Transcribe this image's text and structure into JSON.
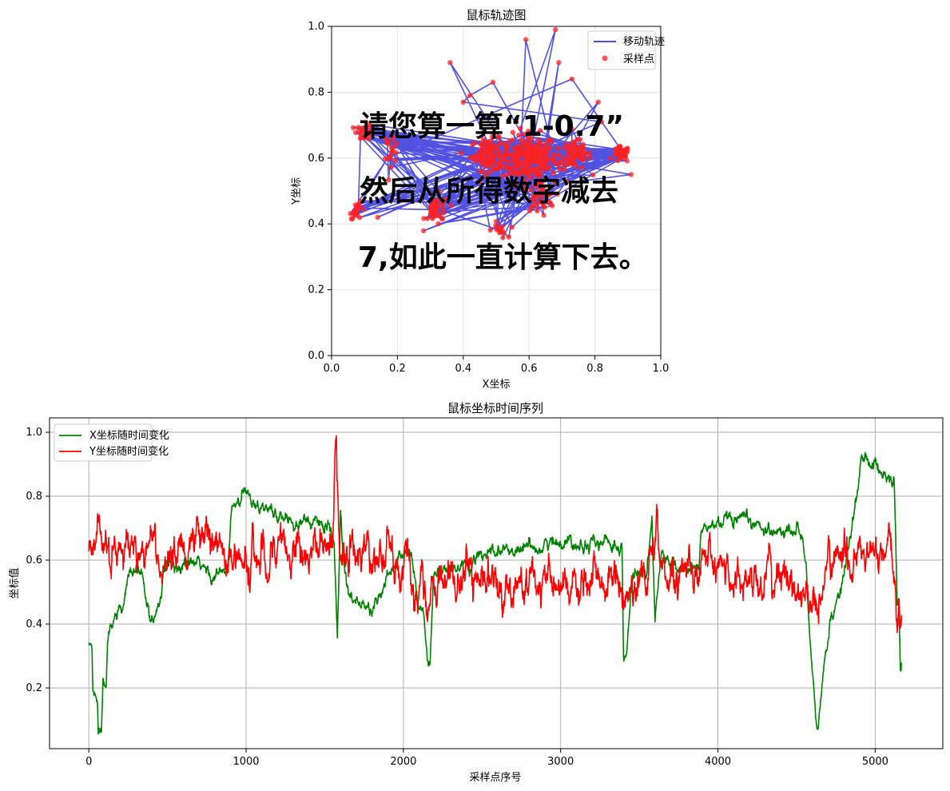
{
  "chart_data": [
    {
      "type": "scatter",
      "title": "鼠标轨迹图",
      "xlabel": "X坐标",
      "ylabel": "Y坐标",
      "xlim": [
        0,
        1
      ],
      "ylim": [
        0,
        1
      ],
      "xticks": [
        "0.0",
        "0.2",
        "0.4",
        "0.6",
        "0.8",
        "1.0"
      ],
      "yticks": [
        "0.0",
        "0.2",
        "0.4",
        "0.6",
        "0.8",
        "1.0"
      ],
      "grid": true,
      "legend": {
        "placement": "top-right",
        "entries": [
          "移动轨迹",
          "采样点"
        ]
      },
      "series": [
        {
          "name": "移动轨迹",
          "style": "line",
          "color": "#3333dd"
        },
        {
          "name": "采样点",
          "style": "marker",
          "color": "#ff2222"
        }
      ],
      "overlay_text": [
        "请您算一算“1-0.7”",
        "然后从所得数字减去",
        "7,如此一直计算下去。"
      ],
      "clusters": [
        {
          "x": 0.6,
          "y": 0.6,
          "sx": 0.07,
          "sy": 0.06,
          "n": 220
        },
        {
          "x": 0.48,
          "y": 0.61,
          "sx": 0.05,
          "sy": 0.04,
          "n": 90
        },
        {
          "x": 0.74,
          "y": 0.61,
          "sx": 0.04,
          "sy": 0.04,
          "n": 70
        },
        {
          "x": 0.88,
          "y": 0.61,
          "sx": 0.02,
          "sy": 0.02,
          "n": 40
        },
        {
          "x": 0.32,
          "y": 0.44,
          "sx": 0.03,
          "sy": 0.04,
          "n": 40
        },
        {
          "x": 0.1,
          "y": 0.68,
          "sx": 0.02,
          "sy": 0.02,
          "n": 25
        },
        {
          "x": 0.08,
          "y": 0.44,
          "sx": 0.02,
          "sy": 0.02,
          "n": 20
        },
        {
          "x": 0.18,
          "y": 0.63,
          "sx": 0.02,
          "sy": 0.04,
          "n": 20
        },
        {
          "x": 0.51,
          "y": 0.38,
          "sx": 0.02,
          "sy": 0.02,
          "n": 15
        },
        {
          "x": 0.63,
          "y": 0.48,
          "sx": 0.04,
          "sy": 0.04,
          "n": 40
        }
      ],
      "outliers": [
        [
          0.36,
          0.89
        ],
        [
          0.59,
          0.96
        ],
        [
          0.68,
          0.99
        ],
        [
          0.69,
          0.89
        ],
        [
          0.73,
          0.84
        ],
        [
          0.81,
          0.77
        ],
        [
          0.49,
          0.83
        ],
        [
          0.42,
          0.79
        ],
        [
          0.4,
          0.77
        ],
        [
          0.82,
          0.71
        ],
        [
          0.14,
          0.42
        ],
        [
          0.91,
          0.55
        ]
      ]
    },
    {
      "type": "line",
      "title": "鼠标坐标时间序列",
      "xlabel": "采样点序号",
      "ylabel": "坐标值",
      "xlim": [
        -250,
        5430
      ],
      "ylim": [
        0.01,
        1.045
      ],
      "xticks": [
        0,
        1000,
        2000,
        3000,
        4000,
        5000
      ],
      "yticks": [
        0.2,
        0.4,
        0.6,
        0.8,
        1.0
      ],
      "grid": true,
      "legend": {
        "placement": "top-left"
      },
      "n_points": 5170,
      "series": [
        {
          "name": "X坐标随时间变化",
          "color": "#008000",
          "noise": 0.012,
          "keyframes": [
            [
              0,
              0.335
            ],
            [
              20,
              0.33
            ],
            [
              25,
              0.19
            ],
            [
              40,
              0.17
            ],
            [
              55,
              0.18
            ],
            [
              60,
              0.07
            ],
            [
              80,
              0.07
            ],
            [
              90,
              0.24
            ],
            [
              110,
              0.24
            ],
            [
              120,
              0.36
            ],
            [
              150,
              0.38
            ],
            [
              170,
              0.43
            ],
            [
              200,
              0.43
            ],
            [
              225,
              0.44
            ],
            [
              250,
              0.55
            ],
            [
              300,
              0.57
            ],
            [
              340,
              0.55
            ],
            [
              370,
              0.44
            ],
            [
              390,
              0.42
            ],
            [
              420,
              0.43
            ],
            [
              450,
              0.48
            ],
            [
              480,
              0.57
            ],
            [
              600,
              0.59
            ],
            [
              700,
              0.58
            ],
            [
              800,
              0.55
            ],
            [
              880,
              0.56
            ],
            [
              910,
              0.76
            ],
            [
              960,
              0.78
            ],
            [
              1000,
              0.81
            ],
            [
              1050,
              0.79
            ],
            [
              1100,
              0.77
            ],
            [
              1200,
              0.74
            ],
            [
              1300,
              0.73
            ],
            [
              1400,
              0.72
            ],
            [
              1520,
              0.71
            ],
            [
              1540,
              0.66
            ],
            [
              1560,
              0.63
            ],
            [
              1580,
              0.37
            ],
            [
              1600,
              0.75
            ],
            [
              1620,
              0.6
            ],
            [
              1650,
              0.52
            ],
            [
              1700,
              0.47
            ],
            [
              1800,
              0.44
            ],
            [
              1880,
              0.52
            ],
            [
              1950,
              0.6
            ],
            [
              2000,
              0.63
            ],
            [
              2050,
              0.62
            ],
            [
              2090,
              0.48
            ],
            [
              2130,
              0.42
            ],
            [
              2150,
              0.3
            ],
            [
              2170,
              0.26
            ],
            [
              2190,
              0.55
            ],
            [
              2220,
              0.57
            ],
            [
              2300,
              0.56
            ],
            [
              2400,
              0.58
            ],
            [
              2500,
              0.61
            ],
            [
              2600,
              0.62
            ],
            [
              2800,
              0.64
            ],
            [
              3000,
              0.66
            ],
            [
              3100,
              0.66
            ],
            [
              3300,
              0.65
            ],
            [
              3390,
              0.65
            ],
            [
              3400,
              0.31
            ],
            [
              3420,
              0.31
            ],
            [
              3460,
              0.56
            ],
            [
              3550,
              0.56
            ],
            [
              3580,
              0.72
            ],
            [
              3600,
              0.4
            ],
            [
              3640,
              0.64
            ],
            [
              3700,
              0.58
            ],
            [
              3800,
              0.57
            ],
            [
              3880,
              0.58
            ],
            [
              3890,
              0.69
            ],
            [
              3950,
              0.7
            ],
            [
              4010,
              0.72
            ],
            [
              4100,
              0.71
            ],
            [
              4200,
              0.72
            ],
            [
              4300,
              0.7
            ],
            [
              4400,
              0.69
            ],
            [
              4450,
              0.69
            ],
            [
              4500,
              0.7
            ],
            [
              4540,
              0.66
            ],
            [
              4560,
              0.6
            ],
            [
              4580,
              0.4
            ],
            [
              4600,
              0.25
            ],
            [
              4620,
              0.1
            ],
            [
              4630,
              0.06
            ],
            [
              4660,
              0.18
            ],
            [
              4680,
              0.3
            ],
            [
              4700,
              0.35
            ],
            [
              4720,
              0.42
            ],
            [
              4750,
              0.47
            ],
            [
              4800,
              0.55
            ],
            [
              4850,
              0.68
            ],
            [
              4870,
              0.76
            ],
            [
              4910,
              0.91
            ],
            [
              4980,
              0.91
            ],
            [
              5030,
              0.88
            ],
            [
              5100,
              0.86
            ],
            [
              5120,
              0.86
            ],
            [
              5140,
              0.48
            ],
            [
              5150,
              0.5
            ],
            [
              5160,
              0.25
            ],
            [
              5170,
              0.28
            ]
          ]
        },
        {
          "name": "Y坐标随时间变化",
          "color": "#ff0000",
          "noise": 0.035,
          "keyframes": [
            [
              0,
              0.63
            ],
            [
              60,
              0.7
            ],
            [
              120,
              0.68
            ],
            [
              180,
              0.6
            ],
            [
              300,
              0.64
            ],
            [
              400,
              0.66
            ],
            [
              480,
              0.58
            ],
            [
              600,
              0.64
            ],
            [
              800,
              0.66
            ],
            [
              900,
              0.62
            ],
            [
              1000,
              0.59
            ],
            [
              1100,
              0.63
            ],
            [
              1200,
              0.64
            ],
            [
              1300,
              0.64
            ],
            [
              1500,
              0.64
            ],
            [
              1550,
              0.62
            ],
            [
              1570,
              0.95
            ],
            [
              1590,
              0.7
            ],
            [
              1620,
              0.62
            ],
            [
              1700,
              0.61
            ],
            [
              1800,
              0.63
            ],
            [
              1900,
              0.61
            ],
            [
              2000,
              0.58
            ],
            [
              2100,
              0.5
            ],
            [
              2160,
              0.42
            ],
            [
              2200,
              0.53
            ],
            [
              2400,
              0.55
            ],
            [
              2500,
              0.52
            ],
            [
              2700,
              0.52
            ],
            [
              2900,
              0.52
            ],
            [
              3100,
              0.5
            ],
            [
              3300,
              0.54
            ],
            [
              3380,
              0.52
            ],
            [
              3400,
              0.47
            ],
            [
              3440,
              0.5
            ],
            [
              3500,
              0.55
            ],
            [
              3580,
              0.58
            ],
            [
              3610,
              0.7
            ],
            [
              3630,
              0.6
            ],
            [
              3700,
              0.55
            ],
            [
              3800,
              0.6
            ],
            [
              3900,
              0.59
            ],
            [
              4000,
              0.57
            ],
            [
              4200,
              0.54
            ],
            [
              4400,
              0.55
            ],
            [
              4600,
              0.48
            ],
            [
              4650,
              0.44
            ],
            [
              4700,
              0.6
            ],
            [
              4800,
              0.6
            ],
            [
              5000,
              0.61
            ],
            [
              5100,
              0.6
            ],
            [
              5120,
              0.55
            ],
            [
              5140,
              0.4
            ],
            [
              5170,
              0.44
            ]
          ]
        }
      ]
    }
  ]
}
